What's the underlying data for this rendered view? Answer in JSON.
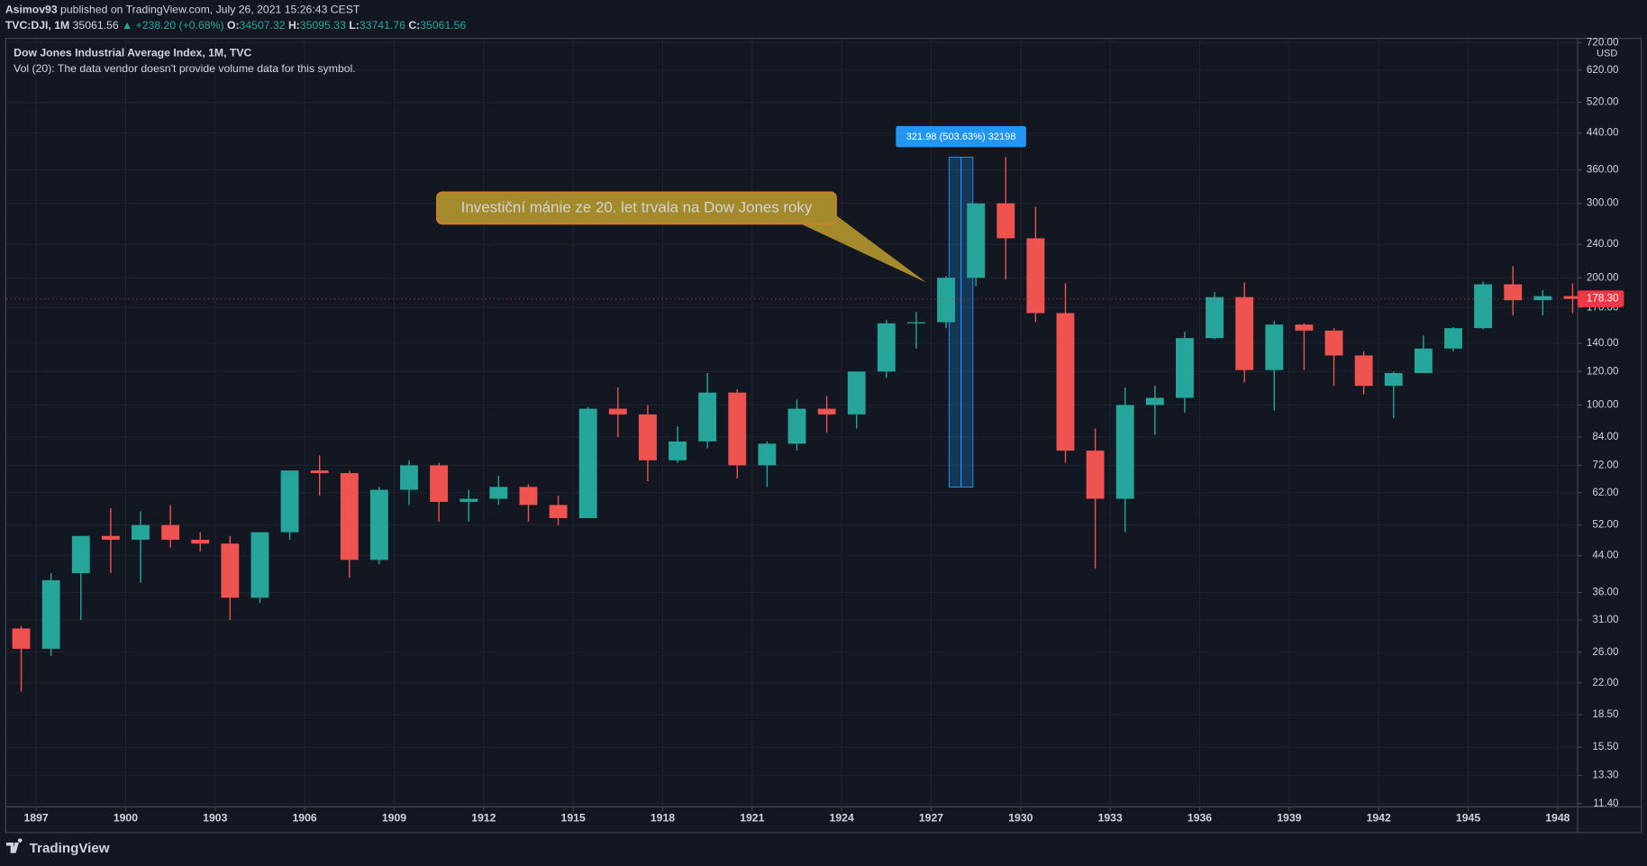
{
  "header": {
    "publisher": "Asimov93",
    "published": "published on TradingView.com, July 26, 2021 15:26:43 CEST",
    "symbol": "TVC:DJI, 1M",
    "last": "35061.56",
    "change": "▲ +238.20 (+0.68%)",
    "o_label": "O:",
    "o": "34507.32",
    "h_label": "H:",
    "h": "35095.33",
    "l_label": "L:",
    "l": "33741.76",
    "c_label": "C:",
    "c": "35061.56"
  },
  "chart_data": {
    "type": "candlestick",
    "title": "Dow Jones Industrial Average Index, 1M, TVC",
    "subtitle": "Vol (20): The data vendor doesn't provide volume data for this symbol.",
    "currency": "USD",
    "x": [
      1896,
      1897,
      1898,
      1899,
      1900,
      1901,
      1902,
      1903,
      1904,
      1905,
      1906,
      1907,
      1908,
      1909,
      1910,
      1911,
      1912,
      1913,
      1914,
      1915,
      1916,
      1917,
      1918,
      1919,
      1920,
      1921,
      1922,
      1923,
      1924,
      1925,
      1926,
      1927,
      1928,
      1929,
      1930,
      1931,
      1932,
      1933,
      1934,
      1935,
      1936,
      1937,
      1938,
      1939,
      1940,
      1941,
      1942,
      1943,
      1944,
      1945,
      1946,
      1947,
      1948
    ],
    "open": [
      29.6,
      26.5,
      40,
      49,
      48,
      52,
      48,
      47,
      35,
      50,
      70,
      69,
      43,
      63,
      72,
      59,
      60,
      64,
      58,
      54,
      98,
      95,
      74,
      82,
      107,
      72,
      81,
      98,
      95,
      120,
      156,
      157,
      200,
      300,
      248,
      165,
      78,
      60,
      100,
      104,
      144,
      180,
      121,
      155,
      150,
      131,
      111,
      119,
      136,
      152,
      193,
      177,
      181
    ],
    "high": [
      30,
      40,
      49,
      57,
      56,
      58,
      50,
      49,
      50,
      70,
      76,
      70,
      64,
      74,
      73,
      63,
      68,
      65,
      61,
      99,
      110,
      100,
      89,
      119,
      109,
      82,
      103,
      105,
      120,
      159,
      166,
      202,
      300,
      386,
      294,
      194,
      88,
      110,
      111,
      149,
      185,
      195,
      158,
      156,
      152,
      134,
      120,
      146,
      153,
      196,
      213,
      187,
      194
    ],
    "low": [
      21,
      25.5,
      31,
      40,
      38,
      46,
      45,
      31,
      34,
      48,
      61,
      39,
      42,
      58,
      53,
      53,
      58,
      53,
      52,
      54,
      84,
      66,
      73,
      79,
      67,
      64,
      78,
      86,
      88,
      116,
      136,
      152,
      191,
      198,
      157,
      73,
      41,
      50,
      85,
      96,
      143,
      113,
      97,
      121,
      111,
      106,
      93,
      119,
      134,
      151,
      163,
      163,
      165
    ],
    "close": [
      26.5,
      38.5,
      49,
      48,
      52,
      48,
      47,
      35,
      50,
      70,
      69,
      43,
      63,
      72,
      59,
      60,
      64,
      58,
      54,
      98,
      95,
      74,
      82,
      107,
      72,
      81,
      98,
      95,
      120,
      156,
      157,
      200,
      300,
      248,
      165,
      78,
      60,
      100,
      104,
      144,
      180,
      121,
      155,
      150,
      131,
      111,
      119,
      136,
      152,
      193,
      177,
      181,
      178.3
    ],
    "up_color": "#26a69a",
    "down_color": "#ef5350",
    "log_scale": true,
    "grid": true,
    "xlim": [
      1896,
      1948.67
    ],
    "ylim": [
      11.2,
      735
    ],
    "xticks": [
      1897,
      1900,
      1903,
      1906,
      1909,
      1912,
      1915,
      1918,
      1921,
      1924,
      1927,
      1930,
      1933,
      1936,
      1939,
      1942,
      1945,
      1948
    ],
    "yticks": [
      {
        "value": 11.4,
        "label": "11.40"
      },
      {
        "value": 13.3,
        "label": "13.30"
      },
      {
        "value": 15.5,
        "label": "15.50"
      },
      {
        "value": 18.5,
        "label": "18.50"
      },
      {
        "value": 22,
        "label": "22.00"
      },
      {
        "value": 26,
        "label": "26.00"
      },
      {
        "value": 31,
        "label": "31.00"
      },
      {
        "value": 36,
        "label": "36.00"
      },
      {
        "value": 44,
        "label": "44.00"
      },
      {
        "value": 52,
        "label": "52.00"
      },
      {
        "value": 62,
        "label": "62.00"
      },
      {
        "value": 72,
        "label": "72.00"
      },
      {
        "value": 84,
        "label": "84.00"
      },
      {
        "value": 100,
        "label": "100.00"
      },
      {
        "value": 120,
        "label": "120.00"
      },
      {
        "value": 140,
        "label": "140.00"
      },
      {
        "value": 170,
        "label": "170.00"
      },
      {
        "value": 200,
        "label": "200.00"
      },
      {
        "value": 240,
        "label": "240.00"
      },
      {
        "value": 300,
        "label": "300.00"
      },
      {
        "value": 360,
        "label": "360.00"
      },
      {
        "value": 440,
        "label": "440.00"
      },
      {
        "value": 520,
        "label": "520.00"
      },
      {
        "value": 620,
        "label": "620.00"
      },
      {
        "value": 720,
        "label": "720.00"
      }
    ],
    "last_price": {
      "value": 178.3,
      "label": "178.30",
      "color": "#f23645"
    },
    "measure": {
      "x0": 1927.6,
      "x1": 1928.4,
      "from": 63.93,
      "to": 385.91,
      "label": "321.98 (503.63%) 32198",
      "color": "#2196f3"
    },
    "callout": "Investiční mánie ze 20. let trvala na Dow Jones roky"
  },
  "footer": {
    "brand": "TradingView"
  }
}
